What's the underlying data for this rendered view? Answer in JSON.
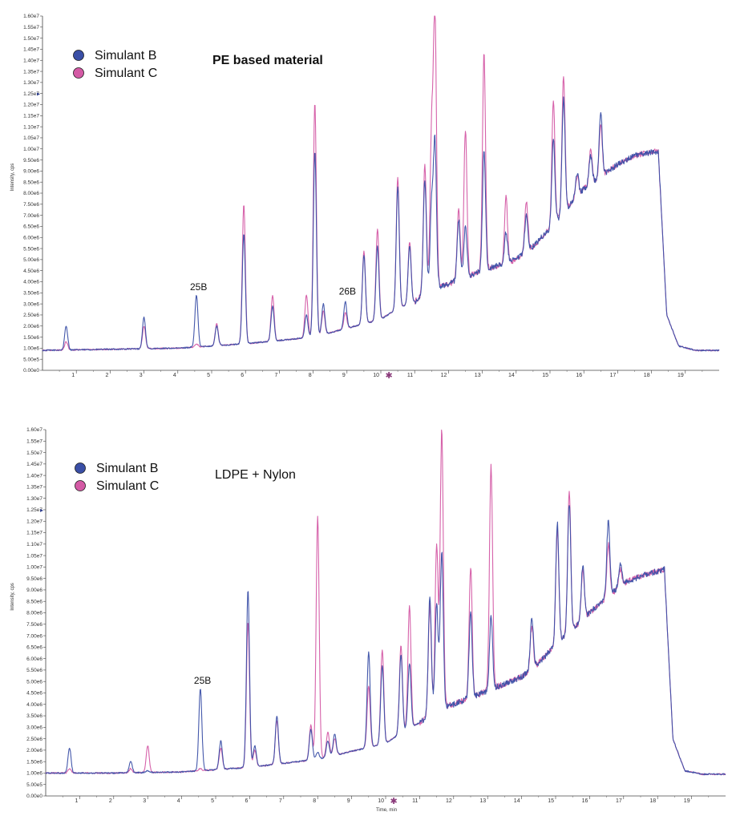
{
  "colors": {
    "series_b": "#3a4fa6",
    "series_c": "#d45aa5",
    "axis": "#444444",
    "background": "#ffffff"
  },
  "chart_data": [
    {
      "type": "line",
      "title": "PE based material",
      "xlabel": "",
      "ylabel": "Intensity, cps",
      "xlim": [
        0,
        20
      ],
      "ylim": [
        0,
        16000000
      ],
      "xticks": [
        "1",
        "2",
        "3",
        "4",
        "5",
        "6",
        "7",
        "8",
        "9",
        "10",
        "11",
        "12",
        "13",
        "14",
        "15",
        "16",
        "17",
        "18",
        "19"
      ],
      "yticks": [
        "0.00e0",
        "5.00e5",
        "1.00e6",
        "1.50e6",
        "2.00e6",
        "2.50e6",
        "3.00e6",
        "3.50e6",
        "4.00e6",
        "4.50e6",
        "5.00e6",
        "5.50e6",
        "6.00e6",
        "6.50e6",
        "7.00e6",
        "7.50e6",
        "8.00e6",
        "8.50e6",
        "9.00e6",
        "9.50e6",
        "1.00e7",
        "1.05e7",
        "1.10e7",
        "1.15e7",
        "1.20e7",
        "1.25e7",
        "1.30e7",
        "1.35e7",
        "1.40e7",
        "1.45e7",
        "1.50e7",
        "1.55e7",
        "1.60e7"
      ],
      "legend": [
        "Simulant  B",
        "Simulant  C"
      ],
      "annotations": [
        {
          "text": "25B",
          "x": 4.55,
          "y": 3400000
        },
        {
          "text": "26B",
          "x": 8.95,
          "y": 3200000
        }
      ],
      "baseline": [
        [
          0,
          900000
        ],
        [
          2,
          950000
        ],
        [
          4,
          1000000
        ],
        [
          6,
          1200000
        ],
        [
          8,
          1500000
        ],
        [
          10,
          2300000
        ],
        [
          10.5,
          2800000
        ],
        [
          11,
          3100000
        ],
        [
          11.5,
          3700000
        ],
        [
          12,
          3900000
        ],
        [
          13,
          4500000
        ],
        [
          14,
          5000000
        ],
        [
          14.5,
          5600000
        ],
        [
          15,
          6400000
        ],
        [
          16,
          8200000
        ],
        [
          17,
          9300000
        ],
        [
          17.5,
          9700000
        ],
        [
          18.2,
          9900000
        ],
        [
          18.45,
          2500000
        ],
        [
          18.8,
          1100000
        ],
        [
          19.3,
          900000
        ],
        [
          20,
          900000
        ]
      ],
      "series": [
        {
          "name": "Simulant  B",
          "peaks": [
            [
              0.7,
              2000000
            ],
            [
              3.0,
              2400000
            ],
            [
              4.55,
              3400000
            ],
            [
              5.15,
              2000000
            ],
            [
              5.95,
              6200000
            ],
            [
              6.8,
              2900000
            ],
            [
              7.8,
              2500000
            ],
            [
              8.05,
              9900000
            ],
            [
              8.3,
              3000000
            ],
            [
              8.95,
              3100000
            ],
            [
              9.5,
              5200000
            ],
            [
              9.9,
              5600000
            ],
            [
              10.5,
              8300000
            ],
            [
              10.85,
              5600000
            ],
            [
              11.3,
              8600000
            ],
            [
              11.5,
              7400000
            ],
            [
              11.6,
              10200000
            ],
            [
              12.3,
              6800000
            ],
            [
              12.5,
              6500000
            ],
            [
              13.05,
              9900000
            ],
            [
              13.7,
              6200000
            ],
            [
              14.3,
              7000000
            ],
            [
              15.1,
              10400000
            ],
            [
              15.4,
              12300000
            ],
            [
              15.8,
              8900000
            ],
            [
              16.2,
              9700000
            ],
            [
              16.5,
              11600000
            ]
          ]
        },
        {
          "name": "Simulant  C",
          "peaks": [
            [
              0.7,
              1300000
            ],
            [
              3.0,
              2000000
            ],
            [
              4.55,
              1200000
            ],
            [
              5.15,
              2100000
            ],
            [
              5.95,
              7500000
            ],
            [
              6.8,
              3400000
            ],
            [
              7.8,
              3400000
            ],
            [
              8.05,
              12100000
            ],
            [
              8.3,
              2700000
            ],
            [
              8.95,
              2600000
            ],
            [
              9.5,
              5400000
            ],
            [
              9.9,
              6400000
            ],
            [
              10.5,
              8700000
            ],
            [
              10.85,
              5800000
            ],
            [
              11.3,
              9300000
            ],
            [
              11.5,
              10600000
            ],
            [
              11.6,
              16000000
            ],
            [
              12.3,
              7300000
            ],
            [
              12.5,
              10900000
            ],
            [
              13.05,
              14300000
            ],
            [
              13.7,
              7800000
            ],
            [
              14.3,
              7600000
            ],
            [
              15.1,
              12200000
            ],
            [
              15.4,
              13300000
            ],
            [
              15.8,
              8800000
            ],
            [
              16.2,
              9900000
            ],
            [
              16.5,
              11100000
            ]
          ]
        }
      ]
    },
    {
      "type": "line",
      "title": "LDPE + Nylon",
      "xlabel": "Time, min",
      "ylabel": "Intensity, cps",
      "xlim": [
        0,
        20
      ],
      "ylim": [
        0,
        16000000
      ],
      "xticks": [
        "1",
        "2",
        "3",
        "4",
        "5",
        "6",
        "7",
        "8",
        "9",
        "10",
        "11",
        "12",
        "13",
        "14",
        "15",
        "16",
        "17",
        "18",
        "19"
      ],
      "yticks": [
        "0.00e0",
        "5.00e5",
        "1.00e6",
        "1.50e6",
        "2.00e6",
        "2.50e6",
        "3.00e6",
        "3.50e6",
        "4.00e6",
        "4.50e6",
        "5.00e6",
        "5.50e6",
        "6.00e6",
        "6.50e6",
        "7.00e6",
        "7.50e6",
        "8.00e6",
        "8.50e6",
        "9.00e6",
        "9.50e6",
        "1.00e7",
        "1.05e7",
        "1.10e7",
        "1.15e7",
        "1.20e7",
        "1.25e7",
        "1.30e7",
        "1.35e7",
        "1.40e7",
        "1.45e7",
        "1.50e7",
        "1.55e7",
        "1.60e7"
      ],
      "legend": [
        "Simulant B",
        "Simulant C"
      ],
      "annotations": [
        {
          "text": "25B",
          "x": 4.55,
          "y": 4700000
        }
      ],
      "baseline": [
        [
          0,
          1000000
        ],
        [
          2,
          1000000
        ],
        [
          4,
          1050000
        ],
        [
          6,
          1250000
        ],
        [
          8,
          1600000
        ],
        [
          10,
          2300000
        ],
        [
          10.5,
          2800000
        ],
        [
          11,
          3200000
        ],
        [
          11.5,
          3800000
        ],
        [
          12,
          4000000
        ],
        [
          13,
          4600000
        ],
        [
          14,
          5200000
        ],
        [
          14.5,
          5800000
        ],
        [
          15,
          6600000
        ],
        [
          16,
          8000000
        ],
        [
          17,
          9300000
        ],
        [
          17.5,
          9600000
        ],
        [
          18.2,
          9900000
        ],
        [
          18.45,
          2500000
        ],
        [
          18.8,
          1100000
        ],
        [
          19.3,
          950000
        ],
        [
          20,
          950000
        ]
      ],
      "series": [
        {
          "name": "Simulant B",
          "peaks": [
            [
              0.7,
              2100000
            ],
            [
              2.5,
              1500000
            ],
            [
              3.0,
              1100000
            ],
            [
              4.55,
              4700000
            ],
            [
              5.15,
              2400000
            ],
            [
              5.95,
              9000000
            ],
            [
              6.15,
              2200000
            ],
            [
              6.8,
              3500000
            ],
            [
              7.8,
              2900000
            ],
            [
              8.0,
              1900000
            ],
            [
              8.3,
              2400000
            ],
            [
              8.5,
              2700000
            ],
            [
              9.5,
              6300000
            ],
            [
              9.9,
              5700000
            ],
            [
              10.45,
              6200000
            ],
            [
              10.7,
              5800000
            ],
            [
              11.3,
              8800000
            ],
            [
              11.5,
              8400000
            ],
            [
              11.65,
              10600000
            ],
            [
              12.5,
              8000000
            ],
            [
              13.1,
              7800000
            ],
            [
              14.3,
              7800000
            ],
            [
              15.05,
              11900000
            ],
            [
              15.4,
              12800000
            ],
            [
              15.8,
              10100000
            ],
            [
              16.55,
              12000000
            ],
            [
              16.9,
              10100000
            ]
          ]
        },
        {
          "name": "Simulant C",
          "peaks": [
            [
              0.7,
              1200000
            ],
            [
              2.5,
              1200000
            ],
            [
              3.0,
              2200000
            ],
            [
              4.55,
              1200000
            ],
            [
              5.15,
              2100000
            ],
            [
              5.95,
              7600000
            ],
            [
              6.15,
              2000000
            ],
            [
              6.8,
              3300000
            ],
            [
              7.8,
              3100000
            ],
            [
              8.0,
              12200000
            ],
            [
              8.3,
              2800000
            ],
            [
              8.5,
              2500000
            ],
            [
              9.5,
              4800000
            ],
            [
              9.9,
              6400000
            ],
            [
              10.45,
              6600000
            ],
            [
              10.7,
              8300000
            ],
            [
              11.3,
              8300000
            ],
            [
              11.5,
              11000000
            ],
            [
              11.65,
              16000000
            ],
            [
              12.5,
              10000000
            ],
            [
              13.1,
              14400000
            ],
            [
              14.3,
              7400000
            ],
            [
              15.05,
              11600000
            ],
            [
              15.4,
              13300000
            ],
            [
              15.8,
              9900000
            ],
            [
              16.55,
              11000000
            ],
            [
              16.9,
              9900000
            ]
          ]
        }
      ]
    }
  ]
}
